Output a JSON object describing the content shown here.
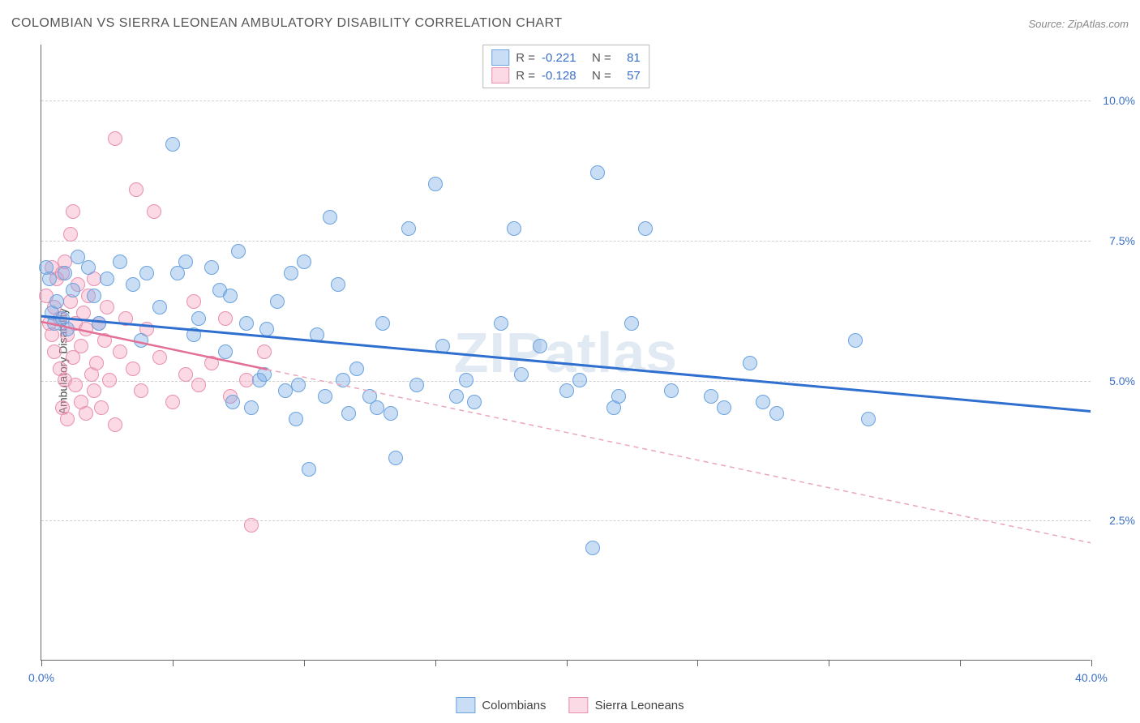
{
  "header": {
    "title": "COLOMBIAN VS SIERRA LEONEAN AMBULATORY DISABILITY CORRELATION CHART",
    "source_prefix": "Source: ",
    "source_name": "ZipAtlas.com"
  },
  "watermark": "ZIPatlas",
  "chart": {
    "type": "scatter",
    "y_label": "Ambulatory Disability",
    "x_domain": [
      0,
      40
    ],
    "y_domain": [
      0,
      11
    ],
    "x_ticks": [
      0,
      5,
      10,
      15,
      20,
      25,
      30,
      35,
      40
    ],
    "x_tick_labels": {
      "0": "0.0%",
      "40": "40.0%"
    },
    "x_tick_label_color": "#3b6fc9",
    "y_gridlines": [
      2.5,
      5.0,
      7.5,
      10.0
    ],
    "y_tick_labels": {
      "2.5": "2.5%",
      "5.0": "5.0%",
      "7.5": "7.5%",
      "10.0": "10.0%"
    },
    "y_tick_label_color": "#3b6fc9",
    "grid_color": "#d0d0d0",
    "background_color": "#ffffff"
  },
  "series": {
    "colombians": {
      "label": "Colombians",
      "fill": "rgba(120,170,230,0.40)",
      "stroke": "#6aa3de",
      "marker_radius": 9,
      "trend": {
        "x1": 0,
        "y1": 6.15,
        "x2": 40,
        "y2": 4.45,
        "color": "#2f6fd0",
        "width": 3,
        "dash": "none"
      },
      "R": "-0.221",
      "N": "81",
      "points": [
        [
          0.2,
          7.0
        ],
        [
          0.3,
          6.8
        ],
        [
          0.4,
          6.2
        ],
        [
          0.5,
          6.0
        ],
        [
          0.6,
          6.4
        ],
        [
          0.8,
          6.1
        ],
        [
          1.0,
          5.9
        ],
        [
          1.2,
          6.6
        ],
        [
          1.4,
          7.2
        ],
        [
          1.8,
          7.0
        ],
        [
          2.0,
          6.5
        ],
        [
          2.2,
          6.0
        ],
        [
          2.5,
          6.8
        ],
        [
          0.9,
          6.9
        ],
        [
          3.0,
          7.1
        ],
        [
          3.5,
          6.7
        ],
        [
          3.8,
          5.7
        ],
        [
          4.0,
          6.9
        ],
        [
          4.5,
          6.3
        ],
        [
          5.0,
          9.2
        ],
        [
          5.2,
          6.9
        ],
        [
          5.5,
          7.1
        ],
        [
          5.8,
          5.8
        ],
        [
          6.0,
          6.1
        ],
        [
          6.5,
          7.0
        ],
        [
          6.8,
          6.6
        ],
        [
          7.0,
          5.5
        ],
        [
          7.3,
          4.6
        ],
        [
          7.5,
          7.3
        ],
        [
          7.8,
          6.0
        ],
        [
          8.0,
          4.5
        ],
        [
          8.3,
          5.0
        ],
        [
          8.5,
          5.1
        ],
        [
          8.6,
          5.9
        ],
        [
          9.0,
          6.4
        ],
        [
          9.3,
          4.8
        ],
        [
          9.5,
          6.9
        ],
        [
          9.7,
          4.3
        ],
        [
          10.0,
          7.1
        ],
        [
          10.5,
          5.8
        ],
        [
          10.8,
          4.7
        ],
        [
          11.0,
          7.9
        ],
        [
          10.2,
          3.4
        ],
        [
          11.3,
          6.7
        ],
        [
          11.5,
          5.0
        ],
        [
          11.7,
          4.4
        ],
        [
          12.0,
          5.2
        ],
        [
          12.5,
          4.7
        ],
        [
          12.8,
          4.5
        ],
        [
          13.0,
          6.0
        ],
        [
          13.3,
          4.4
        ],
        [
          13.5,
          3.6
        ],
        [
          14.0,
          7.7
        ],
        [
          14.3,
          4.9
        ],
        [
          15.0,
          8.5
        ],
        [
          15.3,
          5.6
        ],
        [
          15.8,
          4.7
        ],
        [
          16.2,
          5.0
        ],
        [
          16.5,
          4.6
        ],
        [
          17.5,
          6.0
        ],
        [
          18.0,
          7.7
        ],
        [
          18.3,
          5.1
        ],
        [
          19.0,
          5.6
        ],
        [
          20.0,
          4.8
        ],
        [
          20.5,
          5.0
        ],
        [
          21.0,
          2.0
        ],
        [
          21.8,
          4.5
        ],
        [
          21.2,
          8.7
        ],
        [
          22.0,
          4.7
        ],
        [
          22.5,
          6.0
        ],
        [
          23.0,
          7.7
        ],
        [
          24.0,
          4.8
        ],
        [
          25.5,
          4.7
        ],
        [
          26.0,
          4.5
        ],
        [
          27.0,
          5.3
        ],
        [
          27.5,
          4.6
        ],
        [
          28.0,
          4.4
        ],
        [
          31.0,
          5.7
        ],
        [
          31.5,
          4.3
        ],
        [
          9.8,
          4.9
        ],
        [
          7.2,
          6.5
        ]
      ]
    },
    "sierra_leoneans": {
      "label": "Sierra Leoneans",
      "fill": "rgba(245,160,190,0.40)",
      "stroke": "#e98fb0",
      "marker_radius": 9,
      "trend_solid": {
        "x1": 0,
        "y1": 6.05,
        "x2": 8.6,
        "y2": 5.2,
        "color": "#e36f95",
        "width": 2.5
      },
      "trend_dashed": {
        "x1": 8.6,
        "y1": 5.2,
        "x2": 40,
        "y2": 2.1,
        "color": "#e9a7bd",
        "width": 1.5,
        "dash": "6,5"
      },
      "R": "-0.128",
      "N": "57",
      "points": [
        [
          0.2,
          6.5
        ],
        [
          0.3,
          6.0
        ],
        [
          0.4,
          5.8
        ],
        [
          0.4,
          7.0
        ],
        [
          0.5,
          6.3
        ],
        [
          0.5,
          5.5
        ],
        [
          0.6,
          6.8
        ],
        [
          0.7,
          6.1
        ],
        [
          0.7,
          5.2
        ],
        [
          0.8,
          4.5
        ],
        [
          0.8,
          6.9
        ],
        [
          0.9,
          5.0
        ],
        [
          0.9,
          7.1
        ],
        [
          1.0,
          5.8
        ],
        [
          1.0,
          4.3
        ],
        [
          1.1,
          6.4
        ],
        [
          1.1,
          7.6
        ],
        [
          1.2,
          5.4
        ],
        [
          1.2,
          8.0
        ],
        [
          1.3,
          6.0
        ],
        [
          1.3,
          4.9
        ],
        [
          1.4,
          6.7
        ],
        [
          1.5,
          5.6
        ],
        [
          1.5,
          4.6
        ],
        [
          1.6,
          6.2
        ],
        [
          1.7,
          4.4
        ],
        [
          1.7,
          5.9
        ],
        [
          1.8,
          6.5
        ],
        [
          1.9,
          5.1
        ],
        [
          2.0,
          6.8
        ],
        [
          2.0,
          4.8
        ],
        [
          2.1,
          5.3
        ],
        [
          2.2,
          6.0
        ],
        [
          2.3,
          4.5
        ],
        [
          2.4,
          5.7
        ],
        [
          2.5,
          6.3
        ],
        [
          2.6,
          5.0
        ],
        [
          2.8,
          4.2
        ],
        [
          2.8,
          9.3
        ],
        [
          3.0,
          5.5
        ],
        [
          3.2,
          6.1
        ],
        [
          3.5,
          5.2
        ],
        [
          3.6,
          8.4
        ],
        [
          3.8,
          4.8
        ],
        [
          4.0,
          5.9
        ],
        [
          4.3,
          8.0
        ],
        [
          4.5,
          5.4
        ],
        [
          5.0,
          4.6
        ],
        [
          5.5,
          5.1
        ],
        [
          5.8,
          6.4
        ],
        [
          6.0,
          4.9
        ],
        [
          6.5,
          5.3
        ],
        [
          7.0,
          6.1
        ],
        [
          7.2,
          4.7
        ],
        [
          7.8,
          5.0
        ],
        [
          8.0,
          2.4
        ],
        [
          8.5,
          5.5
        ]
      ]
    }
  },
  "stats_box": {
    "rows": [
      {
        "swatch_fill": "rgba(120,170,230,0.40)",
        "swatch_stroke": "#6aa3de",
        "R_label": "R =",
        "R_val": "-0.221",
        "N_label": "N =",
        "N_val": "81",
        "val_color": "#3b6fc9"
      },
      {
        "swatch_fill": "rgba(245,160,190,0.40)",
        "swatch_stroke": "#e98fb0",
        "R_label": "R =",
        "R_val": "-0.128",
        "N_label": "N =",
        "N_val": "57",
        "val_color": "#3b6fc9"
      }
    ]
  },
  "bottom_legend": [
    {
      "swatch_fill": "rgba(120,170,230,0.40)",
      "swatch_stroke": "#6aa3de",
      "label": "Colombians"
    },
    {
      "swatch_fill": "rgba(245,160,190,0.40)",
      "swatch_stroke": "#e98fb0",
      "label": "Sierra Leoneans"
    }
  ]
}
